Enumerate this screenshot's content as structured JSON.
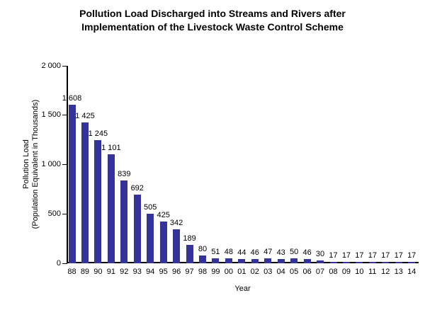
{
  "chart_data": {
    "type": "bar",
    "title_lines": [
      "Pollution Load Discharged into Streams and Rivers after",
      "Implementation of the Livestock Waste Control Scheme"
    ],
    "xlabel": "Year",
    "ylabel_lines": [
      "Pollution Load",
      "(Population Equivalent in Thousands)"
    ],
    "categories": [
      "88",
      "89",
      "90",
      "91",
      "92",
      "93",
      "94",
      "95",
      "96",
      "97",
      "98",
      "99",
      "00",
      "01",
      "02",
      "03",
      "04",
      "05",
      "06",
      "07",
      "08",
      "09",
      "10",
      "11",
      "12",
      "13",
      "14"
    ],
    "values": [
      1608,
      1425,
      1245,
      1101,
      839,
      692,
      505,
      425,
      342,
      189,
      80,
      51,
      48,
      44,
      46,
      47,
      43,
      50,
      46,
      30,
      17,
      17,
      17,
      17,
      17,
      17,
      17
    ],
    "value_labels": [
      "1 608",
      "1 425",
      "1 245",
      "1 101",
      "839",
      "692",
      "505",
      "425",
      "342",
      "189",
      "80",
      "51",
      "48",
      "44",
      "46",
      "47",
      "43",
      "50",
      "46",
      "30",
      "17",
      "17",
      "17",
      "17",
      "17",
      "17",
      "17"
    ],
    "ylim": [
      0,
      2000
    ],
    "yticks": [
      0,
      500,
      1000,
      1500,
      2000
    ],
    "ytick_labels": [
      "0",
      "500",
      "1 000",
      "1 500",
      "2 000"
    ],
    "grid": false,
    "legend": null,
    "bar_color": "#333399",
    "axis_color": "#000000",
    "text_color": "#000000",
    "background": "#ffffff"
  }
}
